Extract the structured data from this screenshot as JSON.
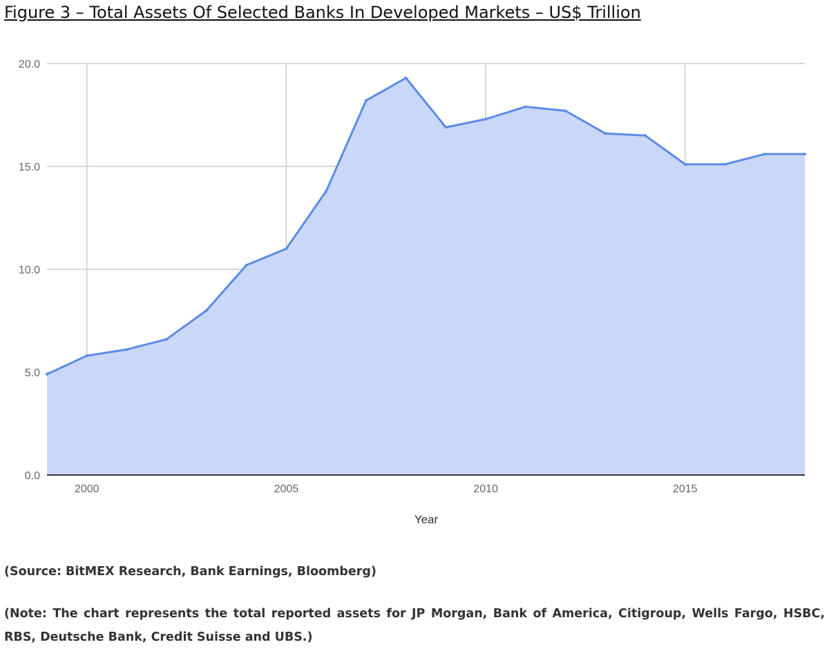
{
  "chart_data": {
    "type": "area",
    "title": "Figure 3 – Total Assets Of Selected Banks In Developed Markets – US$ Trillion",
    "xlabel": "Year",
    "ylabel": "",
    "x": [
      1999,
      2000,
      2001,
      2002,
      2003,
      2004,
      2005,
      2006,
      2007,
      2008,
      2009,
      2010,
      2011,
      2012,
      2013,
      2014,
      2015,
      2016,
      2017,
      2018
    ],
    "values": [
      4.9,
      5.8,
      6.1,
      6.6,
      8.0,
      10.2,
      11.0,
      13.8,
      18.2,
      19.3,
      16.9,
      17.3,
      17.9,
      17.7,
      16.6,
      16.5,
      15.1,
      15.1,
      15.6,
      15.6
    ],
    "xlim": [
      1999,
      2018
    ],
    "ylim": [
      0,
      20
    ],
    "xticks": [
      "2000",
      "2005",
      "2010",
      "2015"
    ],
    "xtick_values": [
      2000,
      2005,
      2010,
      2015
    ],
    "yticks": [
      "0.0",
      "5.0",
      "10.0",
      "15.0",
      "20.0"
    ],
    "ytick_values": [
      0,
      5,
      10,
      15,
      20
    ],
    "grid": true,
    "legend": "none",
    "line_color": "#5a8be6",
    "fill_color": "#c9d8f8",
    "grid_color": "#cccccc",
    "baseline_color": "#333344"
  },
  "notes": {
    "source": "(Source: BitMEX Research, Bank Earnings, Bloomberg)",
    "note": "(Note: The chart represents the total reported assets for JP Morgan, Bank of America, Citigroup, Wells Fargo, HSBC, RBS, Deutsche Bank, Credit Suisse and UBS.)"
  }
}
